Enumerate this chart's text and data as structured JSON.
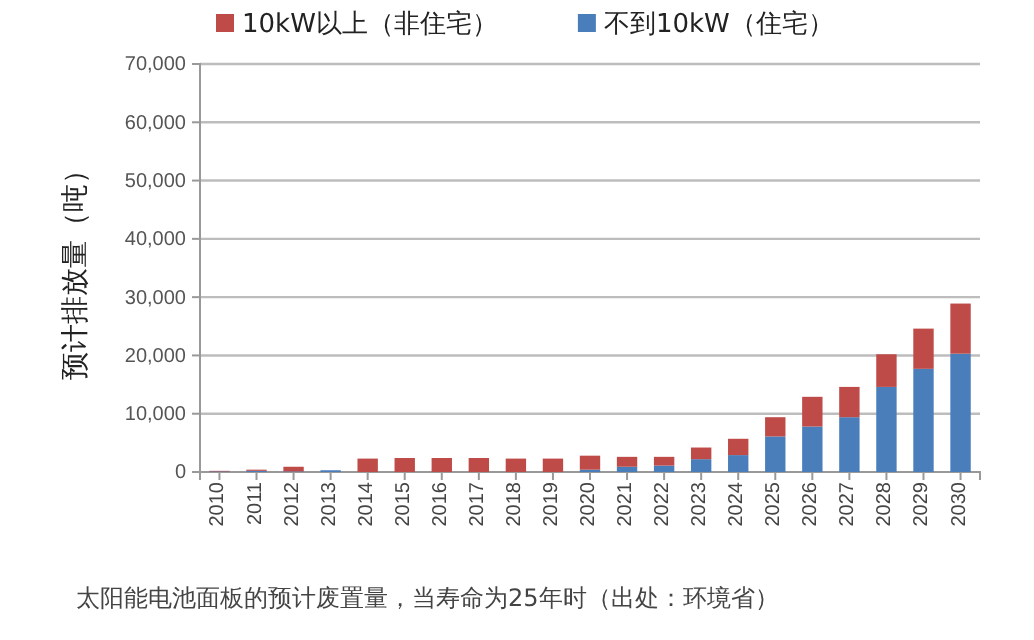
{
  "chart_data": {
    "type": "bar",
    "stacked": true,
    "categories": [
      "2010",
      "2011",
      "2012",
      "2013",
      "2014",
      "2015",
      "2016",
      "2017",
      "2018",
      "2019",
      "2020",
      "2021",
      "2022",
      "2023",
      "2024",
      "2025",
      "2026",
      "2027",
      "2028",
      "2029",
      "2030"
    ],
    "series": [
      {
        "name": "不到10kW（住宅）",
        "color": "#4a7ebb",
        "values": [
          100,
          200,
          100,
          300,
          0,
          0,
          0,
          0,
          0,
          0,
          400,
          900,
          1100,
          2200,
          2900,
          6100,
          7800,
          9400,
          14600,
          17700,
          20300
        ]
      },
      {
        "name": "10kW以上（非住宅）",
        "color": "#be4b48",
        "values": [
          100,
          200,
          800,
          0,
          2300,
          2400,
          2400,
          2400,
          2300,
          2300,
          2400,
          1700,
          1500,
          2000,
          2800,
          3300,
          5100,
          5200,
          5600,
          6900,
          8600
        ]
      }
    ],
    "ylabel": "预计排放量（吨）",
    "ylim": [
      0,
      70000
    ],
    "yticks": [
      {
        "value": 0,
        "label": "0"
      },
      {
        "value": 10000,
        "label": "10,000"
      },
      {
        "value": 20000,
        "label": "20,000"
      },
      {
        "value": 30000,
        "label": "30,000"
      },
      {
        "value": 40000,
        "label": "40,000"
      },
      {
        "value": 50000,
        "label": "50,000"
      },
      {
        "value": 60000,
        "label": "60,000"
      },
      {
        "value": 70000,
        "label": "70,000"
      }
    ],
    "grid": "y",
    "legend": "top",
    "annotations": [
      "太阳能电池面板的预计废置量，当寿命为25年时（出处：环境省）"
    ]
  }
}
